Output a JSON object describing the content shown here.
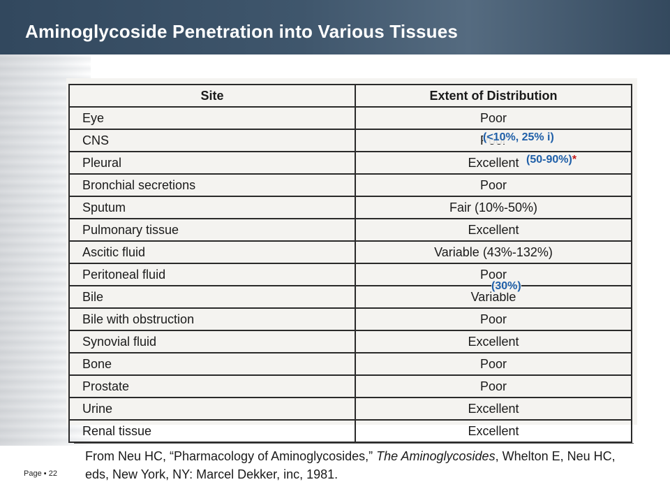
{
  "slide": {
    "title": "Aminoglycoside Penetration into Various Tissues",
    "page_label": "Page",
    "page_bullet": "▪",
    "page_number": "22"
  },
  "table": {
    "headers": {
      "site": "Site",
      "distribution": "Extent of Distribution"
    },
    "rows": [
      {
        "site": "Eye",
        "distribution": "Poor"
      },
      {
        "site": "CNS",
        "distribution": "Poor"
      },
      {
        "site": "Pleural",
        "distribution": "Excellent"
      },
      {
        "site": "Bronchial secretions",
        "distribution": "Poor"
      },
      {
        "site": "Sputum",
        "distribution": "Fair (10%-50%)"
      },
      {
        "site": "Pulmonary tissue",
        "distribution": "Excellent"
      },
      {
        "site": "Ascitic fluid",
        "distribution": "Variable (43%-132%)"
      },
      {
        "site": "Peritoneal fluid",
        "distribution": "Poor"
      },
      {
        "site": "Bile",
        "distribution": "Variable"
      },
      {
        "site": "Bile with obstruction",
        "distribution": "Poor"
      },
      {
        "site": "Synovial fluid",
        "distribution": "Excellent"
      },
      {
        "site": "Bone",
        "distribution": "Poor"
      },
      {
        "site": "Prostate",
        "distribution": "Poor"
      },
      {
        "site": "Urine",
        "distribution": "Excellent"
      },
      {
        "site": "Renal tissue",
        "distribution": "Excellent"
      }
    ]
  },
  "annotations": {
    "cns": "(<10%, 25% i)",
    "pleural": "(50-90%)",
    "pleural_asterisk": "*",
    "bile": "(30%)",
    "color": "#1f5fa8",
    "asterisk_color": "#c21a1a"
  },
  "citation": {
    "part1": "From Neu HC, “Pharmacology of Aminoglycosides,” ",
    "book": "The Aminoglycosides",
    "part2": ", Whelton E, Neu HC, eds, New York, NY: Marcel Dekker, inc, 1981."
  }
}
